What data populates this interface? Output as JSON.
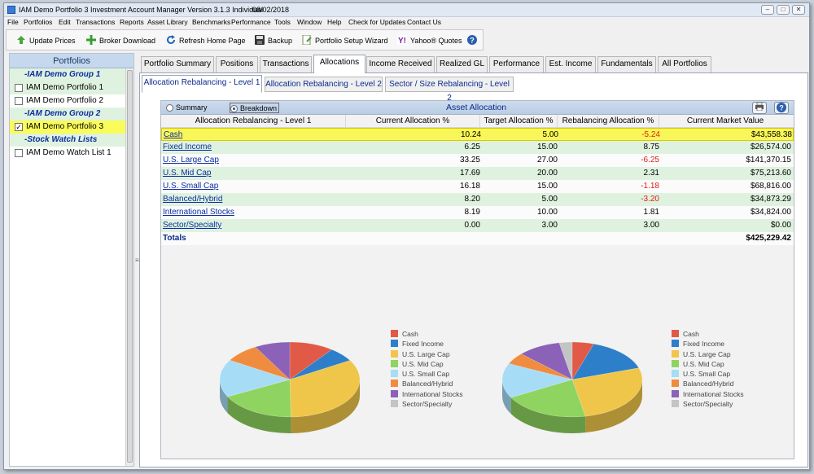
{
  "window": {
    "app_title": "IAM Demo Portfolio 3  Investment Account Manager Version 3.1.3 Individual",
    "date": "08/02/2018"
  },
  "menu": [
    "File",
    "Portfolios",
    "Edit",
    "Transactions",
    "Reports",
    "Asset Library",
    "Benchmarks",
    "Performance",
    "Tools",
    "Window",
    "Help",
    "Check for Updates",
    "Contact Us"
  ],
  "toolbar": {
    "update_prices": "Update Prices",
    "broker_download": "Broker Download",
    "refresh_home": "Refresh Home Page",
    "backup": "Backup",
    "setup_wizard": "Portfolio Setup Wizard",
    "yahoo_quotes": "Yahoo® Quotes"
  },
  "sidebar": {
    "title": "Portfolios",
    "items": [
      {
        "label": "-IAM Demo Group 1",
        "type": "group"
      },
      {
        "label": "IAM Demo Portfolio 1",
        "type": "item",
        "checked": false
      },
      {
        "label": "IAM Demo Portfolio 2",
        "type": "item",
        "checked": false
      },
      {
        "label": "-IAM Demo Group 2",
        "type": "group"
      },
      {
        "label": "IAM Demo Portfolio 3",
        "type": "item",
        "checked": true
      },
      {
        "label": "-Stock Watch Lists",
        "type": "group"
      },
      {
        "label": "IAM Demo Watch List 1",
        "type": "item",
        "checked": false
      }
    ]
  },
  "tabs": [
    "Portfolio Summary",
    "Positions",
    "Transactions",
    "Allocations",
    "Income Received",
    "Realized GL",
    "Performance",
    "Est. Income",
    "Fundamentals",
    "All Portfolios"
  ],
  "active_tab": "Allocations",
  "subtabs": [
    "Allocation Rebalancing - Level 1",
    "Allocation Rebalancing - Level 2",
    "Sector / Size Rebalancing - Level 2"
  ],
  "panel": {
    "title": "Asset Allocation",
    "radio_summary": "Summary",
    "radio_breakdown": "Breakdown",
    "selected_view": "Breakdown"
  },
  "grid": {
    "headers": [
      "Allocation Rebalancing - Level 1",
      "Current Allocation %",
      "Target Allocation %",
      "Rebalancing Allocation %",
      "Current Market Value"
    ],
    "rows": [
      {
        "name": "Cash",
        "current": "10.24",
        "target": "5.00",
        "rebalancing": "-5.24",
        "value": "$43,558.38"
      },
      {
        "name": "Fixed Income",
        "current": "6.25",
        "target": "15.00",
        "rebalancing": "8.75",
        "value": "$26,574.00"
      },
      {
        "name": "U.S. Large Cap",
        "current": "33.25",
        "target": "27.00",
        "rebalancing": "-6.25",
        "value": "$141,370.15"
      },
      {
        "name": "U.S. Mid Cap",
        "current": "17.69",
        "target": "20.00",
        "rebalancing": "2.31",
        "value": "$75,213.60"
      },
      {
        "name": "U.S. Small Cap",
        "current": "16.18",
        "target": "15.00",
        "rebalancing": "-1.18",
        "value": "$68,816.00"
      },
      {
        "name": "Balanced/Hybrid",
        "current": "8.20",
        "target": "5.00",
        "rebalancing": "-3.20",
        "value": "$34,873.29"
      },
      {
        "name": "International Stocks",
        "current": "8.19",
        "target": "10.00",
        "rebalancing": "1.81",
        "value": "$34,824.00"
      },
      {
        "name": "Sector/Specialty",
        "current": "0.00",
        "target": "3.00",
        "rebalancing": "3.00",
        "value": "$0.00"
      }
    ],
    "totals_label": "Totals",
    "totals_value": "$425,229.42"
  },
  "chart_data": [
    {
      "type": "pie",
      "categories": [
        "Cash",
        "Fixed Income",
        "U.S. Large Cap",
        "U.S. Mid Cap",
        "U.S. Small Cap",
        "Balanced/Hybrid",
        "International Stocks",
        "Sector/Specialty"
      ],
      "values": [
        10.24,
        6.25,
        33.25,
        17.69,
        16.18,
        8.2,
        8.19,
        0.0
      ],
      "colors": [
        "#e05a47",
        "#2e7fc9",
        "#f0c64a",
        "#8fd460",
        "#a7dcf7",
        "#f08c3f",
        "#8b62b8",
        "#c4c4c4"
      ],
      "legend": "right"
    },
    {
      "type": "pie",
      "categories": [
        "Cash",
        "Fixed Income",
        "U.S. Large Cap",
        "U.S. Mid Cap",
        "U.S. Small Cap",
        "Balanced/Hybrid",
        "International Stocks",
        "Sector/Specialty"
      ],
      "values": [
        5.0,
        15.0,
        27.0,
        20.0,
        15.0,
        5.0,
        10.0,
        3.0
      ],
      "colors": [
        "#e05a47",
        "#2e7fc9",
        "#f0c64a",
        "#8fd460",
        "#a7dcf7",
        "#f08c3f",
        "#8b62b8",
        "#c4c4c4"
      ],
      "legend": "right"
    }
  ]
}
